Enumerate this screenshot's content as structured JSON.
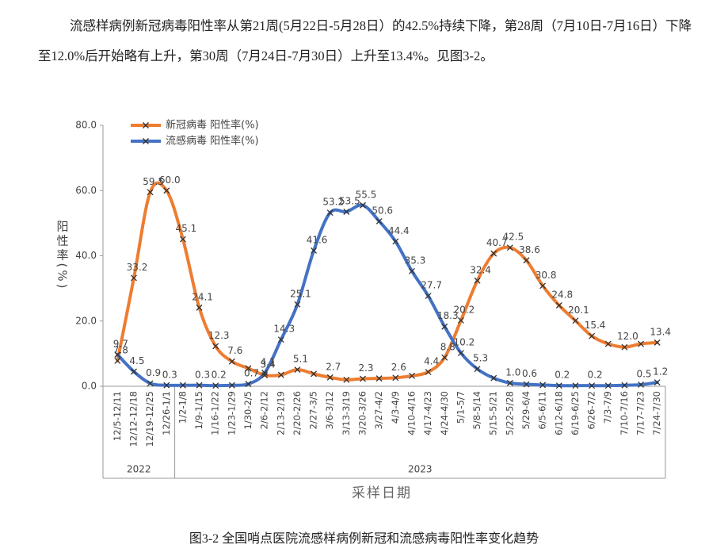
{
  "document": {
    "paragraph": "流感样病例新冠病毒阳性率从第21周(5月22日-5月28日）的42.5%持续下降，第28周（7月10日-7月16日）下降至12.0%后开始略有上升，第30周（7月24日-7月30日）上升至13.4%。见图3-2。",
    "caption": "图3-2 全国哨点医院流感样病例新冠和流感病毒阳性率变化趋势"
  },
  "chart_data": {
    "type": "line",
    "y_axis_label": "阳性率(%)",
    "x_axis_label": "采样日期",
    "categories": [
      "12/5-12/11",
      "12/12-12/18",
      "12/19-12/25",
      "12/26-1/1",
      "1/2-1/8",
      "1/9-1/15",
      "1/16-1/22",
      "1/23-1/29",
      "1/30-2/5",
      "2/6-2/12",
      "2/13-2/19",
      "2/20-2/26",
      "2/27-3/5",
      "3/6-3/12",
      "3/13-3/19",
      "3/20-3/26",
      "3/27-4/2",
      "4/3-4/9",
      "4/10-4/16",
      "4/17-4/23",
      "4/24-4/30",
      "5/1-5/7",
      "5/8-5/14",
      "5/15-5/21",
      "5/22-5/28",
      "5/29-6/4",
      "6/5-6/11",
      "6/12-6/18",
      "6/19-6/25",
      "6/26-7/2",
      "7/3-7/9",
      "7/10-7/16",
      "7/17-7/23",
      "7/24-7/30"
    ],
    "category_groups": [
      {
        "label": "2022",
        "span": 4
      },
      {
        "label": "2023",
        "span": 30
      }
    ],
    "series": [
      {
        "name": "新冠病毒 阳性率(%)",
        "color": "#ed7d31",
        "values": [
          7.8,
          33.2,
          59.5,
          60.0,
          45.1,
          24.1,
          12.3,
          7.6,
          5.5,
          3.4,
          3.5,
          5.1,
          3.8,
          2.7,
          2.0,
          2.3,
          2.4,
          2.6,
          3.2,
          4.4,
          8.8,
          20.2,
          32.4,
          40.7,
          42.5,
          38.6,
          30.8,
          24.8,
          20.1,
          15.4,
          13.0,
          12.0,
          13.0,
          13.4
        ],
        "value_labels": [
          "7.8",
          "33.2",
          "59.5",
          "60.0",
          "45.1",
          "24.1",
          "12.3",
          "7.6",
          null,
          "3.4",
          null,
          "5.1",
          null,
          "2.7",
          null,
          "2.3",
          null,
          "2.6",
          null,
          "4.4",
          "8.8",
          "20.2",
          "32.4",
          "40.7",
          "42.5",
          "38.6",
          "30.8",
          "24.8",
          "20.1",
          "15.4",
          null,
          "12.0",
          null,
          "13.4"
        ]
      },
      {
        "name": "流感病毒 阳性率(%)",
        "color": "#4472c4",
        "values": [
          9.7,
          4.5,
          0.9,
          0.3,
          0.3,
          0.3,
          0.2,
          0.3,
          0.7,
          4.1,
          14.3,
          25.1,
          41.6,
          53.2,
          53.5,
          55.5,
          50.6,
          44.4,
          35.3,
          27.7,
          18.3,
          10.2,
          5.3,
          2.5,
          1.0,
          0.6,
          0.4,
          0.2,
          0.2,
          0.2,
          0.2,
          0.3,
          0.5,
          1.2
        ],
        "value_labels": [
          "9.7",
          "4.5",
          "0.9",
          "0.3",
          null,
          "0.3",
          "0.2",
          null,
          "0.7",
          "4.1",
          "14.3",
          "25.1",
          "41.6",
          "53.2",
          "53.5",
          "55.5",
          "50.6",
          "44.4",
          "35.3",
          "27.7",
          "18.3",
          "10.2",
          "5.3",
          null,
          "1.0",
          "0.6",
          null,
          "0.2",
          null,
          "0.2",
          null,
          null,
          "0.5",
          "1.2"
        ]
      }
    ],
    "ylim": [
      0,
      80
    ],
    "yticks": [
      {
        "value": 0,
        "label": "0.0"
      },
      {
        "value": 20,
        "label": "20.0"
      },
      {
        "value": 40,
        "label": "40.0"
      },
      {
        "value": 60,
        "label": "60.0"
      },
      {
        "value": 80,
        "label": "80.0"
      }
    ],
    "legend": "top-left",
    "grid": false
  }
}
